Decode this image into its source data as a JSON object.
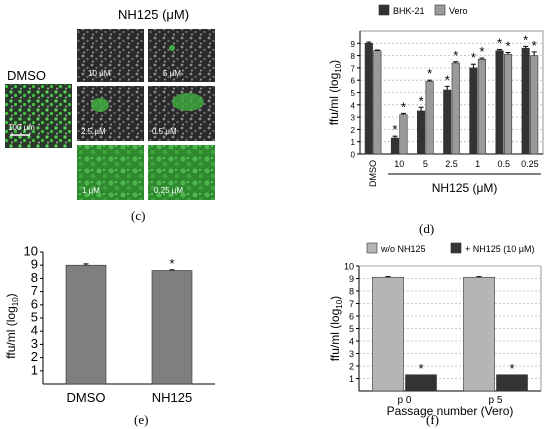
{
  "panel_c": {
    "title": "NH125 (μM)",
    "control_label": "DMSO",
    "scale_label": "100 μm",
    "tiles": [
      {
        "label": "10 μM"
      },
      {
        "label": "5 μM"
      },
      {
        "label": "2.5 μM"
      },
      {
        "label": "0.5 μM"
      },
      {
        "label": "1 μM"
      },
      {
        "label": "0.25 μM"
      }
    ],
    "caption": "(c)"
  },
  "captions": {
    "c": "(c)",
    "d": "(d)",
    "e": "(e)",
    "f": "(f)"
  },
  "colors": {
    "dark": "#333333",
    "light": "#9a9a9a",
    "medium": "#7f7f7f",
    "cell_green": "#3fae3f"
  },
  "chart_data": [
    {
      "id": "d",
      "type": "bar",
      "ylabel": "ffu/ml (log10)",
      "ylim": [
        0,
        10
      ],
      "yticks": [
        0,
        1,
        2,
        3,
        4,
        5,
        6,
        7,
        8,
        9
      ],
      "grid": true,
      "legend_position": "top",
      "categories": [
        "DMSO",
        "10",
        "5",
        "2.5",
        "1",
        "0.5",
        "0.25"
      ],
      "group_label": "NH125 (μM)",
      "series": [
        {
          "name": "BHK-21",
          "values": [
            9.0,
            1.3,
            3.5,
            5.2,
            7.0,
            8.4,
            8.6
          ],
          "errors": [
            0.1,
            0.15,
            0.3,
            0.3,
            0.3,
            0.1,
            0.15
          ],
          "star": [
            false,
            true,
            true,
            true,
            true,
            true,
            true
          ]
        },
        {
          "name": "Vero",
          "values": [
            8.4,
            3.2,
            5.9,
            7.4,
            7.7,
            8.1,
            8.0
          ],
          "errors": [
            0.05,
            0.1,
            0.1,
            0.1,
            0.1,
            0.15,
            0.3
          ],
          "star": [
            false,
            true,
            true,
            true,
            true,
            true,
            true
          ]
        }
      ]
    },
    {
      "id": "e",
      "type": "bar",
      "ylabel": "ffu/ml (log10)",
      "ylim": [
        0,
        10
      ],
      "yticks": [
        1,
        2,
        3,
        4,
        5,
        6,
        7,
        8,
        9,
        10
      ],
      "grid": false,
      "categories": [
        "DMSO",
        "NH125"
      ],
      "series": [
        {
          "values": [
            9.0,
            8.6
          ],
          "errors": [
            0.1,
            0.05
          ],
          "star": [
            false,
            true
          ]
        }
      ]
    },
    {
      "id": "f",
      "type": "bar",
      "ylabel": "ffu/ml (log10)",
      "xlabel": "Passage number (Vero)",
      "ylim": [
        0,
        10
      ],
      "yticks": [
        1,
        2,
        3,
        4,
        5,
        6,
        7,
        8,
        9,
        10
      ],
      "grid": true,
      "legend_position": "top",
      "categories": [
        "p 0",
        "p 5"
      ],
      "series": [
        {
          "name": "w/o NH125",
          "values": [
            9.1,
            9.1
          ],
          "errors": [
            0.05,
            0.05
          ],
          "star": [
            false,
            false
          ]
        },
        {
          "name": "+ NH125 (10 μM)",
          "values": [
            1.3,
            1.3
          ],
          "errors": [
            0,
            0
          ],
          "star": [
            true,
            true
          ]
        }
      ]
    }
  ]
}
